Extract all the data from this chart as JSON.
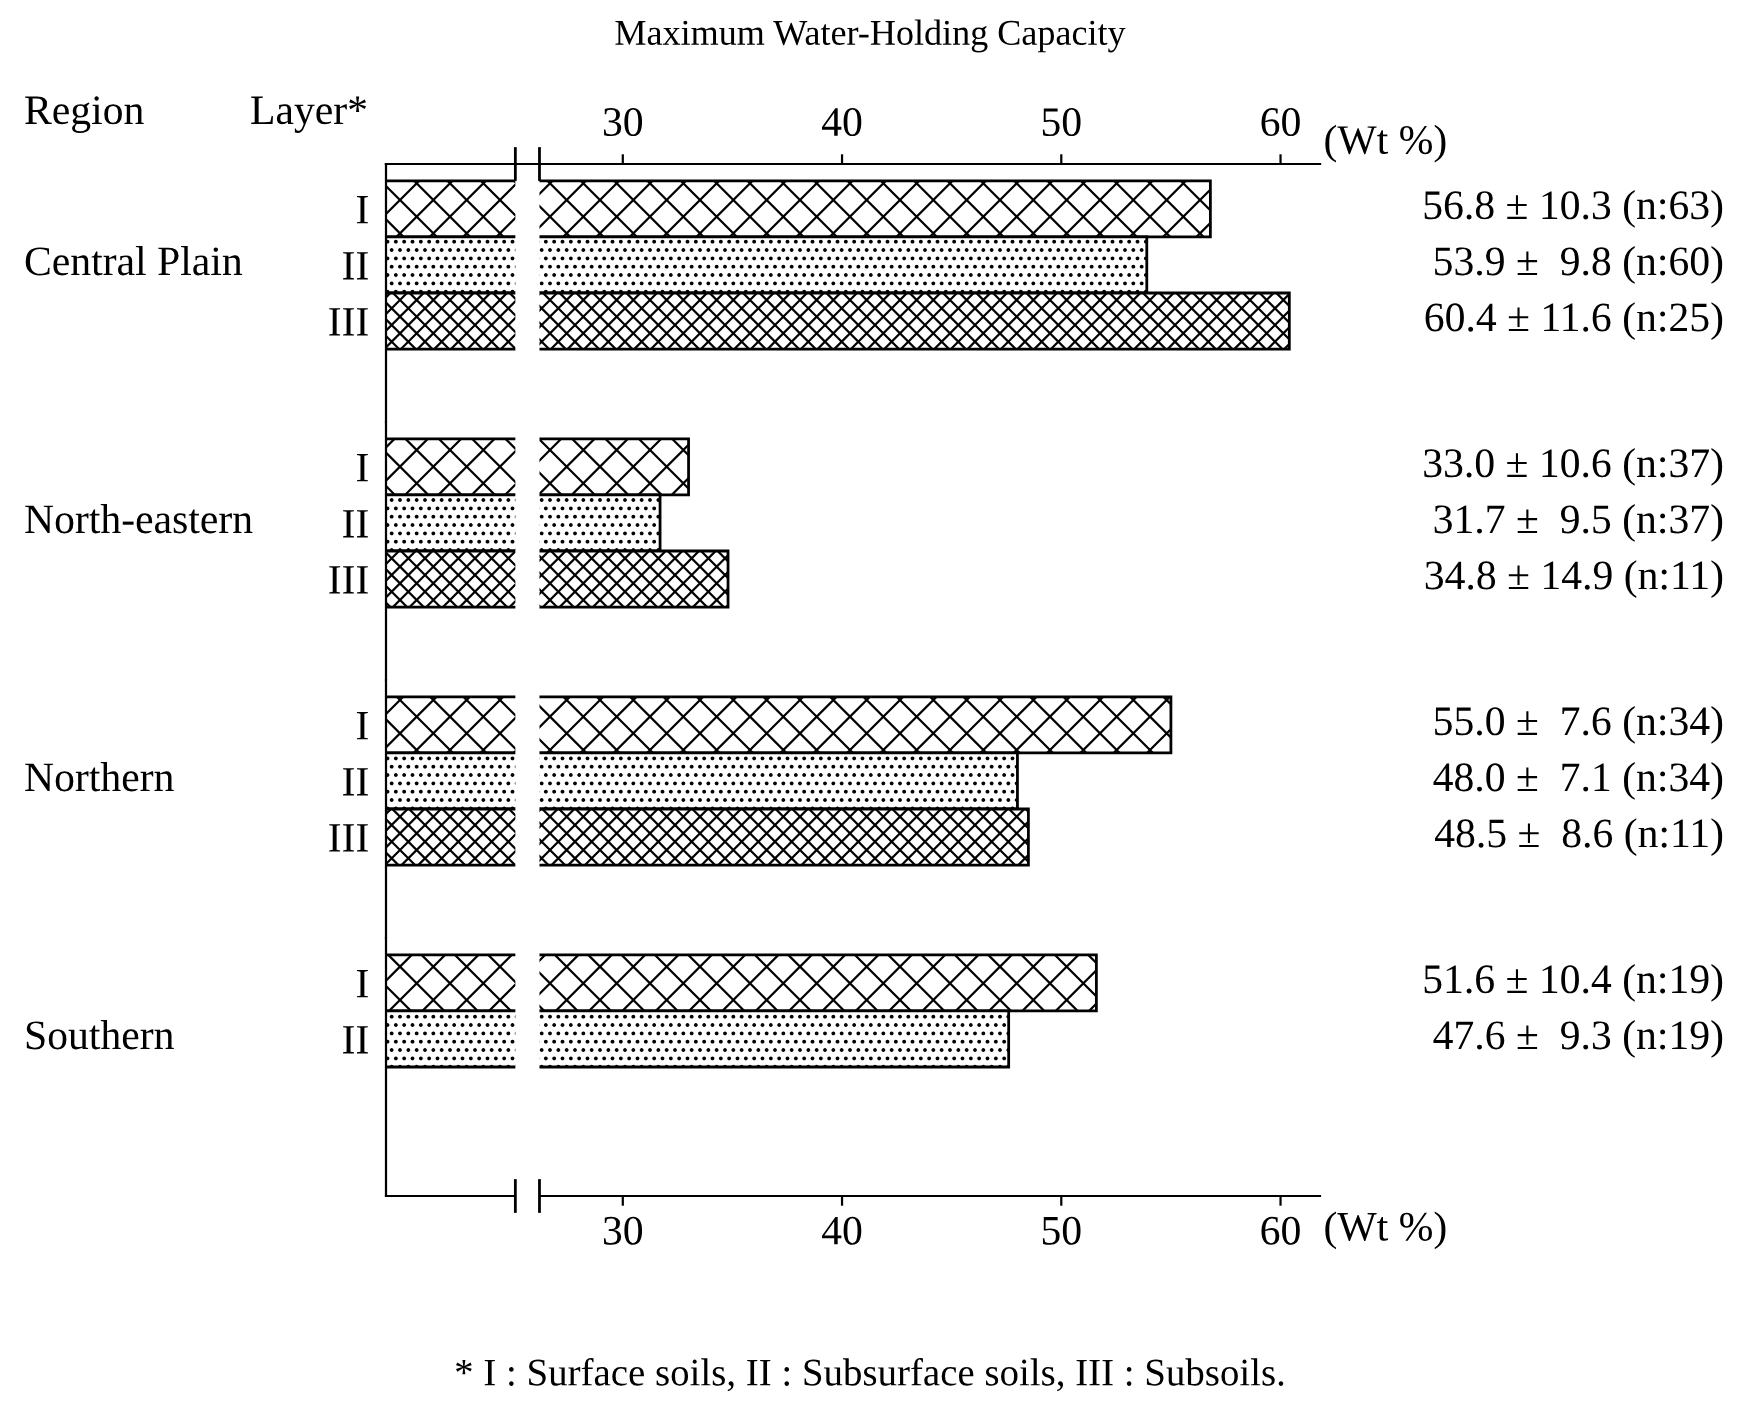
{
  "chart_data": [
    {
      "type": "bar",
      "orientation": "horizontal",
      "title": "Maximum Water-Holding Capacity",
      "ylabel": "Central Plain",
      "categories": [
        "I",
        "II",
        "III"
      ],
      "values": [
        56.8,
        53.9,
        60.4
      ],
      "color": "#000000",
      "value_labels": [
        "56.8 ± 10.3 (n:63)",
        "53.9 ±  9.8 (n:60)",
        "60.4 ± 11.6 (n:25)"
      ],
      "x2lim": [
        19.2,
        61.8
      ],
      "x2ticks": [
        30,
        40,
        50,
        60
      ],
      "x2label": "(Wt %)",
      "xlim": [
        19.2,
        61.8
      ],
      "tick_labels": "y",
      "annotations": [
        "Region",
        "Layer*"
      ]
    },
    {
      "type": "bar",
      "orientation": "horizontal",
      "ylabel": "North-eastern",
      "categories": [
        "I",
        "II",
        "III"
      ],
      "values": [
        33.0,
        31.7,
        34.8
      ],
      "color": "#000000",
      "value_labels": [
        "33.0 ± 10.6 (n:37)",
        "31.7 ±  9.5 (n:37)",
        "34.8 ± 14.9 (n:11)"
      ],
      "xlim": [
        19.2,
        61.8
      ],
      "tick_labels": "y"
    },
    {
      "type": "bar",
      "orientation": "horizontal",
      "ylabel": "Northern",
      "categories": [
        "I",
        "II",
        "III"
      ],
      "values": [
        55.0,
        48.0,
        48.5
      ],
      "color": "#000000",
      "value_labels": [
        "55.0 ±  7.6 (n:34)",
        "48.0 ±  7.1 (n:34)",
        "48.5 ±  8.6 (n:11)"
      ],
      "xlim": [
        19.2,
        61.8
      ],
      "tick_labels": "y"
    },
    {
      "type": "bar",
      "orientation": "horizontal",
      "ylabel": "Southern",
      "categories": [
        "I",
        "II",
        null
      ],
      "values": [
        51.6,
        47.6,
        null
      ],
      "color": "#000000",
      "value_labels": [
        "51.6 ± 10.4 (n:19)",
        "47.6 ±  9.3 (n:19)",
        null
      ],
      "xlim": [
        19.2,
        61.8
      ],
      "xticks": [
        30,
        40,
        50,
        60
      ],
      "xlabel": "(Wt %)",
      "annotations": [
        "* I : Surface soils, II : Subsurface soils, III : Subsoils."
      ]
    }
  ]
}
